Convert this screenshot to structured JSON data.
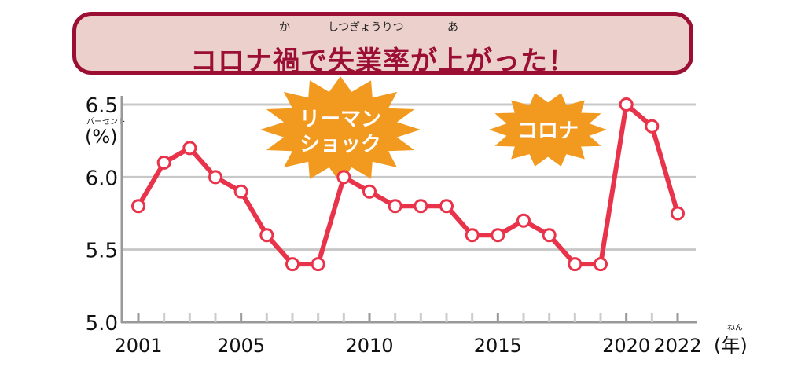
{
  "title": {
    "text": "コロナ禍で失業率が上がった！",
    "ruby": [
      "か",
      "しつぎょうりつ",
      "あ"
    ]
  },
  "colors": {
    "line": "#e8334a",
    "title_border": "#9b0f35",
    "title_bg": "#ecd0cc",
    "burst": "#f29a20",
    "grid": "#c8c8c8"
  },
  "chart_data": {
    "type": "line",
    "title": "コロナ禍で失業率が上がった！",
    "xlabel": "(年)",
    "xlabel_ruby": "ねん",
    "ylabel": "(%)",
    "ylabel_ruby": "パーセント",
    "ylim": [
      5.0,
      6.5
    ],
    "yticks": [
      "5.0",
      "5.5",
      "6.0",
      "6.5"
    ],
    "xticks": [
      "2001",
      "2005",
      "2010",
      "2015",
      "2020",
      "2022"
    ],
    "grid": true,
    "x": [
      2001,
      2002,
      2003,
      2004,
      2005,
      2006,
      2007,
      2008,
      2009,
      2010,
      2011,
      2012,
      2013,
      2014,
      2015,
      2016,
      2017,
      2018,
      2019,
      2020,
      2021,
      2022
    ],
    "series": [
      {
        "name": "失業率",
        "values": [
          5.8,
          6.1,
          6.2,
          6.0,
          5.9,
          5.6,
          5.4,
          5.4,
          6.0,
          5.9,
          5.8,
          5.8,
          5.8,
          5.6,
          5.6,
          5.7,
          5.6,
          5.4,
          5.4,
          6.5,
          6.35,
          5.75
        ]
      }
    ],
    "annotations": [
      {
        "lines": [
          "リーマン",
          "ショック"
        ],
        "near_x": 2009
      },
      {
        "lines": [
          "コロナ"
        ],
        "near_x": 2020
      }
    ]
  }
}
